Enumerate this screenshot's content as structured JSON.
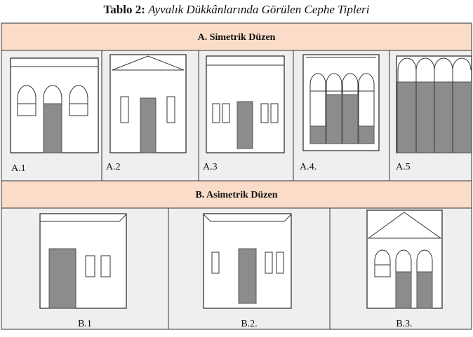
{
  "title": {
    "prefix": "Tablo 2:",
    "text": "Ayvalık Dükkânlarında Görülen Cephe Tipleri"
  },
  "sections": [
    {
      "title": "A. Simetrik Düzen",
      "items": [
        {
          "label": "A.1"
        },
        {
          "label": "A.2"
        },
        {
          "label": "A.3"
        },
        {
          "label": "A.4."
        },
        {
          "label": "A.5"
        }
      ]
    },
    {
      "title": "B. Asimetrik Düzen",
      "items": [
        {
          "label": "B.1"
        },
        {
          "label": "B.2."
        },
        {
          "label": "B.3."
        }
      ]
    }
  ]
}
